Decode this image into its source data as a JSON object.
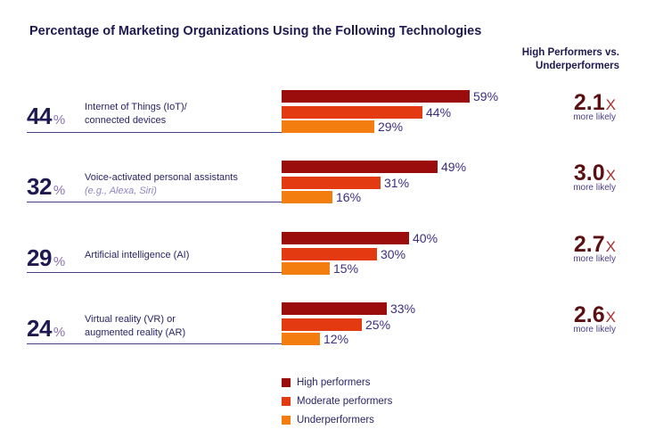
{
  "title": "Percentage of Marketing Organizations Using the Following Technologies",
  "compare_header": [
    "High Performers vs.",
    "Underperformers"
  ],
  "colors": {
    "high": "#9b0d0d",
    "moderate": "#e43a12",
    "under": "#f47d0f",
    "text": "#1e1950"
  },
  "chart_data": {
    "type": "bar",
    "orientation": "horizontal",
    "title": "Percentage of Marketing Organizations Using the Following Technologies",
    "categories": [
      "Internet of Things (IoT)/ connected devices",
      "Voice-activated personal assistants (e.g., Alexa, Siri)",
      "Artificial intelligence (AI)",
      "Virtual reality (VR) or augmented reality (AR)"
    ],
    "overall_percent": [
      44,
      32,
      29,
      24
    ],
    "series": [
      {
        "name": "High performers",
        "values": [
          59,
          49,
          40,
          33
        ]
      },
      {
        "name": "Moderate performers",
        "values": [
          44,
          31,
          30,
          25
        ]
      },
      {
        "name": "Underperformers",
        "values": [
          29,
          16,
          15,
          12
        ]
      }
    ],
    "multiplier": [
      "2.1",
      "3.0",
      "2.7",
      "2.6"
    ],
    "xlim": [
      0,
      60
    ],
    "legend_position": "bottom",
    "grid": false
  },
  "rows": [
    {
      "overall": "44",
      "pct_symbol": "%",
      "label_lines": [
        "Internet of Things (IoT)/",
        "connected devices"
      ],
      "sub": "",
      "bars": [
        {
          "value": 59,
          "label": "59%"
        },
        {
          "value": 44,
          "label": "44%"
        },
        {
          "value": 29,
          "label": "29%"
        }
      ],
      "multiplier": "2.1",
      "x": "X",
      "more_likely": "more likely"
    },
    {
      "overall": "32",
      "pct_symbol": "%",
      "label_lines": [
        "Voice-activated personal assistants"
      ],
      "sub": "(e.g., Alexa, Siri)",
      "bars": [
        {
          "value": 49,
          "label": "49%"
        },
        {
          "value": 31,
          "label": "31%"
        },
        {
          "value": 16,
          "label": "16%"
        }
      ],
      "multiplier": "3.0",
      "x": "X",
      "more_likely": "more likely"
    },
    {
      "overall": "29",
      "pct_symbol": "%",
      "label_lines": [
        "Artificial intelligence (AI)"
      ],
      "sub": "",
      "bars": [
        {
          "value": 40,
          "label": "40%"
        },
        {
          "value": 30,
          "label": "30%"
        },
        {
          "value": 15,
          "label": "15%"
        }
      ],
      "multiplier": "2.7",
      "x": "X",
      "more_likely": "more likely"
    },
    {
      "overall": "24",
      "pct_symbol": "%",
      "label_lines": [
        "Virtual reality (VR) or",
        "augmented reality (AR)"
      ],
      "sub": "",
      "bars": [
        {
          "value": 33,
          "label": "33%"
        },
        {
          "value": 25,
          "label": "25%"
        },
        {
          "value": 12,
          "label": "12%"
        }
      ],
      "multiplier": "2.6",
      "x": "X",
      "more_likely": "more likely"
    }
  ],
  "legend": [
    {
      "label": "High performers",
      "color": "#9b0d0d"
    },
    {
      "label": "Moderate performers",
      "color": "#e43a12"
    },
    {
      "label": "Underperformers",
      "color": "#f47d0f"
    }
  ]
}
